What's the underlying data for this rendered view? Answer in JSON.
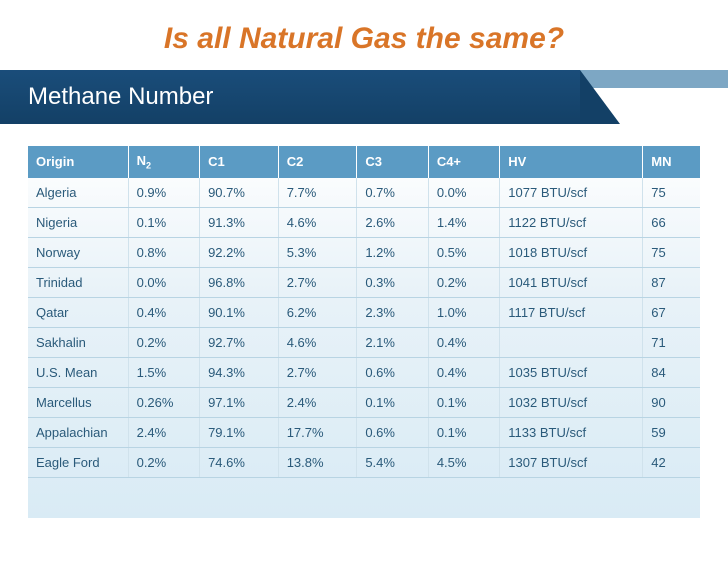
{
  "title": {
    "text": "Is all Natural Gas the same?",
    "color": "#d97528"
  },
  "banner": {
    "text": "Methane Number",
    "bg_gradient_top": "#1a4d7a",
    "bg_gradient_bottom": "#134066",
    "text_color": "#ffffff"
  },
  "table": {
    "header_bg": "#5b9bc4",
    "header_color": "#ffffff",
    "cell_color": "#2a5a7a",
    "columns": [
      "Origin",
      "N₂",
      "C1",
      "C2",
      "C3",
      "C4+",
      "HV",
      "MN"
    ],
    "rows": [
      [
        "Algeria",
        "0.9%",
        "90.7%",
        "7.7%",
        "0.7%",
        "0.0%",
        "1077 BTU/scf",
        "75"
      ],
      [
        "Nigeria",
        "0.1%",
        "91.3%",
        "4.6%",
        "2.6%",
        "1.4%",
        "1122 BTU/scf",
        "66"
      ],
      [
        "Norway",
        "0.8%",
        "92.2%",
        "5.3%",
        "1.2%",
        "0.5%",
        "1018 BTU/scf",
        "75"
      ],
      [
        "Trinidad",
        "0.0%",
        "96.8%",
        "2.7%",
        "0.3%",
        "0.2%",
        "1041 BTU/scf",
        "87"
      ],
      [
        "Qatar",
        "0.4%",
        "90.1%",
        "6.2%",
        "2.3%",
        "1.0%",
        "1117 BTU/scf",
        "67"
      ],
      [
        "Sakhalin",
        "0.2%",
        "92.7%",
        "4.6%",
        "2.1%",
        "0.4%",
        "",
        "71"
      ],
      [
        "U.S. Mean",
        "1.5%",
        "94.3%",
        "2.7%",
        "0.6%",
        "0.4%",
        "1035 BTU/scf",
        "84"
      ],
      [
        "Marcellus",
        "0.26%",
        "97.1%",
        "2.4%",
        "0.1%",
        "0.1%",
        "1032 BTU/scf",
        "90"
      ],
      [
        "Appalachian",
        "2.4%",
        "79.1%",
        "17.7%",
        "0.6%",
        "0.1%",
        "1133 BTU/scf",
        "59"
      ],
      [
        "Eagle Ford",
        "0.2%",
        "74.6%",
        "13.8%",
        "5.4%",
        "4.5%",
        "1307 BTU/scf",
        "42"
      ]
    ]
  }
}
